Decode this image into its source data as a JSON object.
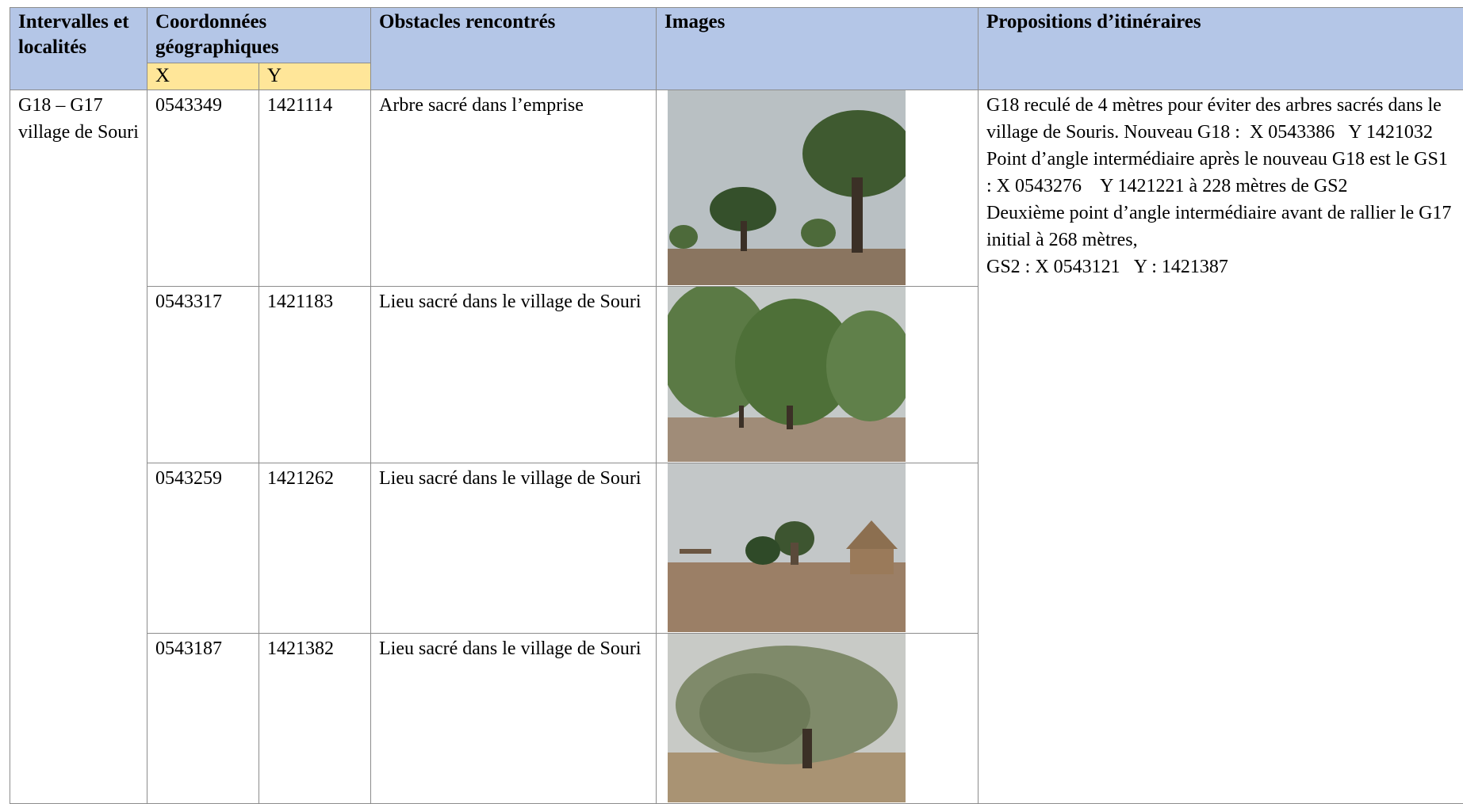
{
  "header": {
    "columns": [
      "Intervalles et localités",
      "Coordonnées géographiques",
      "Obstacles rencontrés",
      "Images",
      "Propositions d’itinéraires"
    ],
    "sub": [
      "X",
      "Y"
    ]
  },
  "table": {
    "interval": "G18 – G17 village de Souri",
    "rows": [
      {
        "x": "0543349",
        "y": "1421114",
        "obstacle": "Arbre sacré dans l’emprise"
      },
      {
        "x": "0543317",
        "y": "1421183",
        "obstacle": "Lieu sacré dans le village de Souri"
      },
      {
        "x": "0543259",
        "y": "1421262",
        "obstacle": "Lieu sacré dans le village de Souri"
      },
      {
        "x": "0543187",
        "y": "1421382",
        "obstacle": "Lieu sacré dans le village de Souri"
      }
    ],
    "proposition": [
      "G18 reculé de 4 mètres pour éviter des arbres sacrés dans le village de Souris. Nouveau G18 :  X 0543386   Y 1421032",
      "Point d’angle intermédiaire après le nouveau G18 est le GS1 : X 0543276    Y 1421221 à 228 mètres de GS2",
      "Deuxième point d’angle intermédiaire avant de rallier le G17 initial à 268 mètres,",
      "GS2 : X 0543121   Y : 1421387"
    ]
  }
}
